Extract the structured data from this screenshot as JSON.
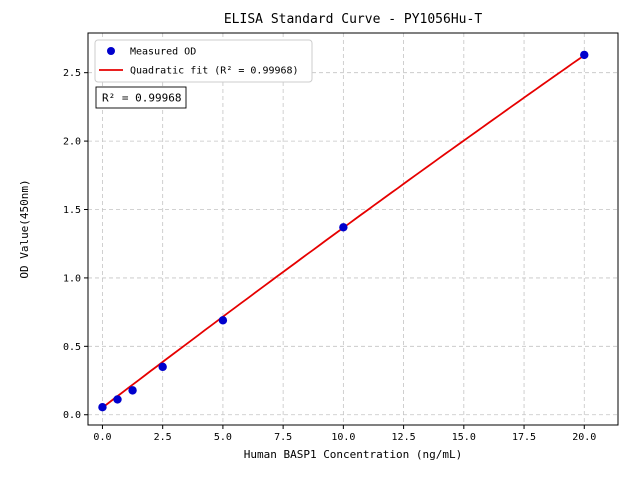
{
  "chart_data": {
    "type": "scatter",
    "title": "ELISA Standard Curve - PY1056Hu-T",
    "xlabel": "Human BASP1 Concentration (ng/mL)",
    "ylabel": "OD Value(450nm)",
    "xlim": [
      -0.6,
      21.4
    ],
    "ylim": [
      -0.075,
      2.79
    ],
    "xticks": [
      0,
      2.5,
      5,
      7.5,
      10,
      12.5,
      15,
      17.5,
      20
    ],
    "xtick_labels": [
      "0.0",
      "2.5",
      "5.0",
      "7.5",
      "10.0",
      "12.5",
      "15.0",
      "17.5",
      "20.0"
    ],
    "yticks": [
      0,
      0.5,
      1,
      1.5,
      2,
      2.5
    ],
    "ytick_labels": [
      "0.0",
      "0.5",
      "1.0",
      "1.5",
      "2.0",
      "2.5"
    ],
    "grid": true,
    "grid_style": "dashed",
    "background": "#ffffff",
    "series": [
      {
        "name": "Measured OD",
        "type": "scatter",
        "color": "#0000cd",
        "marker": "circle",
        "x": [
          0,
          0.625,
          1.25,
          2.5,
          5,
          10,
          20
        ],
        "y": [
          0.055,
          0.112,
          0.178,
          0.35,
          0.69,
          1.37,
          2.63
        ]
      },
      {
        "name": "Quadratic fit (R² = 0.99968)",
        "type": "line",
        "color": "#e60000",
        "fit_coeffs": {
          "a": -0.000275,
          "b": 0.13425,
          "c": 0.052
        },
        "x_start": 0,
        "x_end": 20
      }
    ],
    "legend": {
      "position": "upper left",
      "entries": [
        "Measured OD",
        "Quadratic fit (R² = 0.99968)"
      ]
    },
    "annotation": {
      "text": "R² = 0.99968"
    },
    "r_squared": 0.99968
  }
}
